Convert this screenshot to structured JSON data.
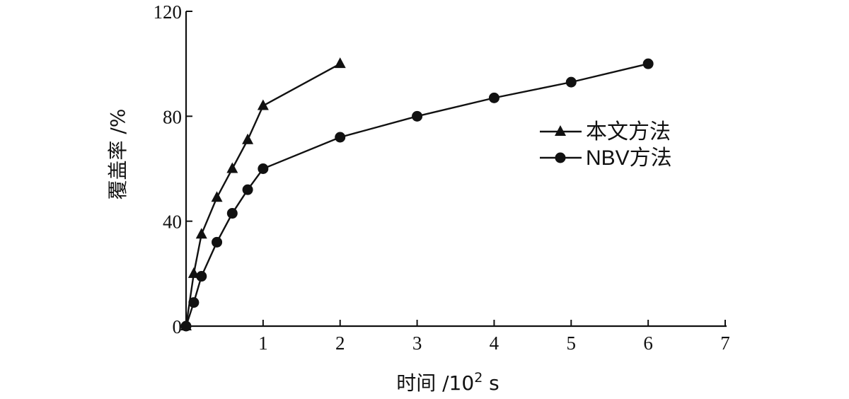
{
  "chart_data": {
    "type": "line",
    "xlabel_prefix": "时间 /10",
    "xlabel_sup": "2",
    "xlabel_suffix": " s",
    "ylabel": "覆盖率 /%",
    "xlim": [
      0,
      7
    ],
    "ylim": [
      0,
      120
    ],
    "xticks": [
      "1",
      "2",
      "3",
      "4",
      "5",
      "6",
      "7"
    ],
    "yticks": [
      "0",
      "40",
      "80",
      "120"
    ],
    "legend_position": "right-middle",
    "grid": false,
    "series": [
      {
        "name": "本文方法",
        "marker": "triangle",
        "x": [
          0,
          0.1,
          0.2,
          0.4,
          0.6,
          0.8,
          1.0,
          2.0
        ],
        "y": [
          0,
          20,
          35,
          49,
          60,
          71,
          84,
          100
        ]
      },
      {
        "name": "NBV方法",
        "marker": "circle",
        "x": [
          0,
          0.1,
          0.2,
          0.4,
          0.6,
          0.8,
          1.0,
          2.0,
          3.0,
          4.0,
          5.0,
          6.0
        ],
        "y": [
          0,
          9,
          19,
          32,
          43,
          52,
          60,
          72,
          80,
          87,
          93,
          100
        ]
      }
    ]
  }
}
